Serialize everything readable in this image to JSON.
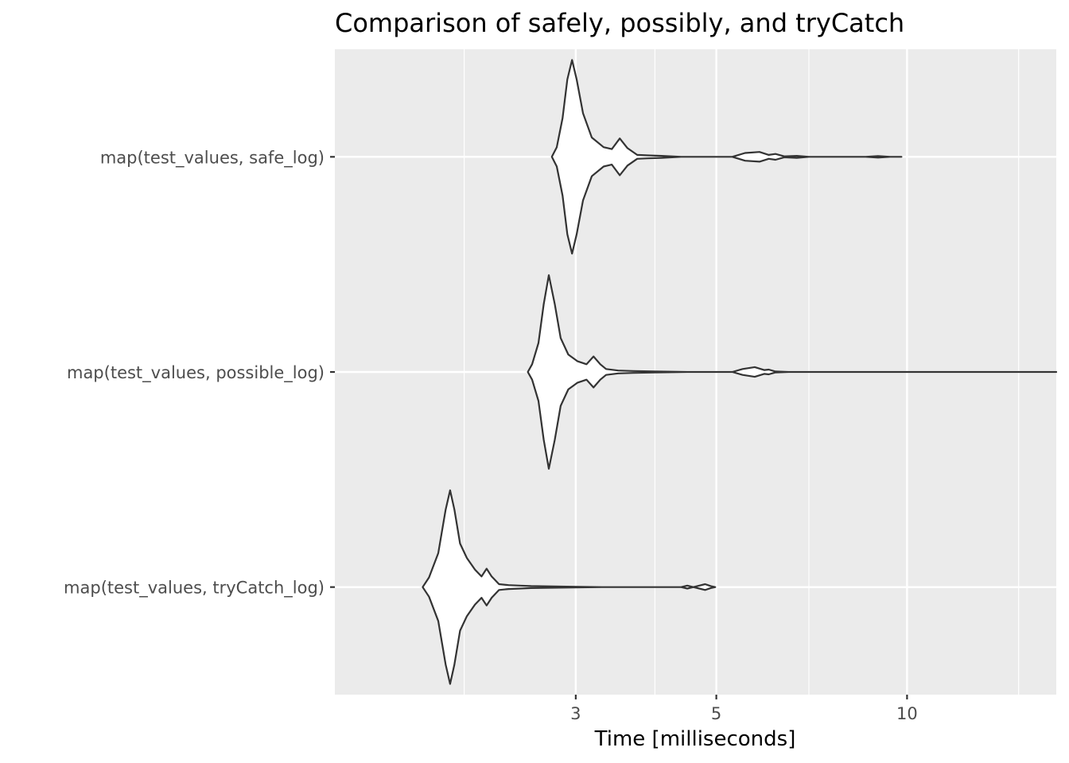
{
  "chart_data": {
    "type": "violin",
    "title": "Comparison of safely, possibly, and tryCatch",
    "xlabel": "Time [milliseconds]",
    "ylabel": "",
    "x_scale": "log10",
    "xlim": [
      1.25,
      17.2
    ],
    "x_ticks": [
      3,
      5,
      10
    ],
    "x_tick_labels": [
      "3",
      "5",
      "10"
    ],
    "x_minor_gridlines": [
      2,
      4,
      7,
      15
    ],
    "categories": [
      "map(test_values, tryCatch_log)",
      "map(test_values, possible_log)",
      "map(test_values, safe_log)"
    ],
    "series": [
      {
        "name": "map(test_values, tryCatch_log)",
        "min": 1.72,
        "max": 4.98,
        "density_profile": [
          [
            1.72,
            0.0
          ],
          [
            1.76,
            0.1
          ],
          [
            1.82,
            0.35
          ],
          [
            1.87,
            0.8
          ],
          [
            1.9,
            1.0
          ],
          [
            1.93,
            0.8
          ],
          [
            1.97,
            0.45
          ],
          [
            2.02,
            0.3
          ],
          [
            2.08,
            0.18
          ],
          [
            2.13,
            0.11
          ],
          [
            2.17,
            0.19
          ],
          [
            2.21,
            0.11
          ],
          [
            2.27,
            0.03
          ],
          [
            2.35,
            0.02
          ],
          [
            2.45,
            0.015
          ],
          [
            2.55,
            0.01
          ],
          [
            2.9,
            0.005
          ],
          [
            3.3,
            0.0
          ],
          [
            4.4,
            0.0
          ],
          [
            4.5,
            0.015
          ],
          [
            4.6,
            0.0
          ],
          [
            4.7,
            0.015
          ],
          [
            4.8,
            0.03
          ],
          [
            4.9,
            0.01
          ],
          [
            4.98,
            0.0
          ]
        ]
      },
      {
        "name": "map(test_values, possible_log)",
        "min": 2.52,
        "max": 17.2,
        "density_profile": [
          [
            2.52,
            0.0
          ],
          [
            2.56,
            0.08
          ],
          [
            2.62,
            0.3
          ],
          [
            2.67,
            0.7
          ],
          [
            2.72,
            1.0
          ],
          [
            2.78,
            0.7
          ],
          [
            2.84,
            0.35
          ],
          [
            2.92,
            0.18
          ],
          [
            3.02,
            0.11
          ],
          [
            3.12,
            0.08
          ],
          [
            3.2,
            0.16
          ],
          [
            3.28,
            0.08
          ],
          [
            3.35,
            0.03
          ],
          [
            3.5,
            0.015
          ],
          [
            3.7,
            0.01
          ],
          [
            4.0,
            0.005
          ],
          [
            4.5,
            0.0
          ],
          [
            5.3,
            0.0
          ],
          [
            5.5,
            0.03
          ],
          [
            5.75,
            0.05
          ],
          [
            5.95,
            0.02
          ],
          [
            6.05,
            0.025
          ],
          [
            6.2,
            0.005
          ],
          [
            6.5,
            0.0
          ],
          [
            17.2,
            0.0
          ]
        ]
      },
      {
        "name": "map(test_values, safe_log)",
        "min": 2.75,
        "max": 9.8,
        "density_profile": [
          [
            2.75,
            0.0
          ],
          [
            2.8,
            0.1
          ],
          [
            2.86,
            0.4
          ],
          [
            2.91,
            0.8
          ],
          [
            2.96,
            1.0
          ],
          [
            3.01,
            0.8
          ],
          [
            3.08,
            0.45
          ],
          [
            3.18,
            0.2
          ],
          [
            3.32,
            0.1
          ],
          [
            3.42,
            0.08
          ],
          [
            3.52,
            0.19
          ],
          [
            3.62,
            0.09
          ],
          [
            3.75,
            0.02
          ],
          [
            3.9,
            0.015
          ],
          [
            4.1,
            0.01
          ],
          [
            4.4,
            0.0
          ],
          [
            5.3,
            0.0
          ],
          [
            5.55,
            0.04
          ],
          [
            5.85,
            0.05
          ],
          [
            6.05,
            0.02
          ],
          [
            6.2,
            0.03
          ],
          [
            6.4,
            0.005
          ],
          [
            6.7,
            0.01
          ],
          [
            7.0,
            0.0
          ],
          [
            8.6,
            0.0
          ],
          [
            9.0,
            0.008
          ],
          [
            9.4,
            0.0
          ],
          [
            9.8,
            0.0
          ]
        ]
      }
    ],
    "colors": {
      "panel_background": "#EBEBEB",
      "gridline": "#FFFFFF",
      "violin_fill": "#FFFFFF",
      "violin_outline": "#333333"
    },
    "legend": "none"
  }
}
